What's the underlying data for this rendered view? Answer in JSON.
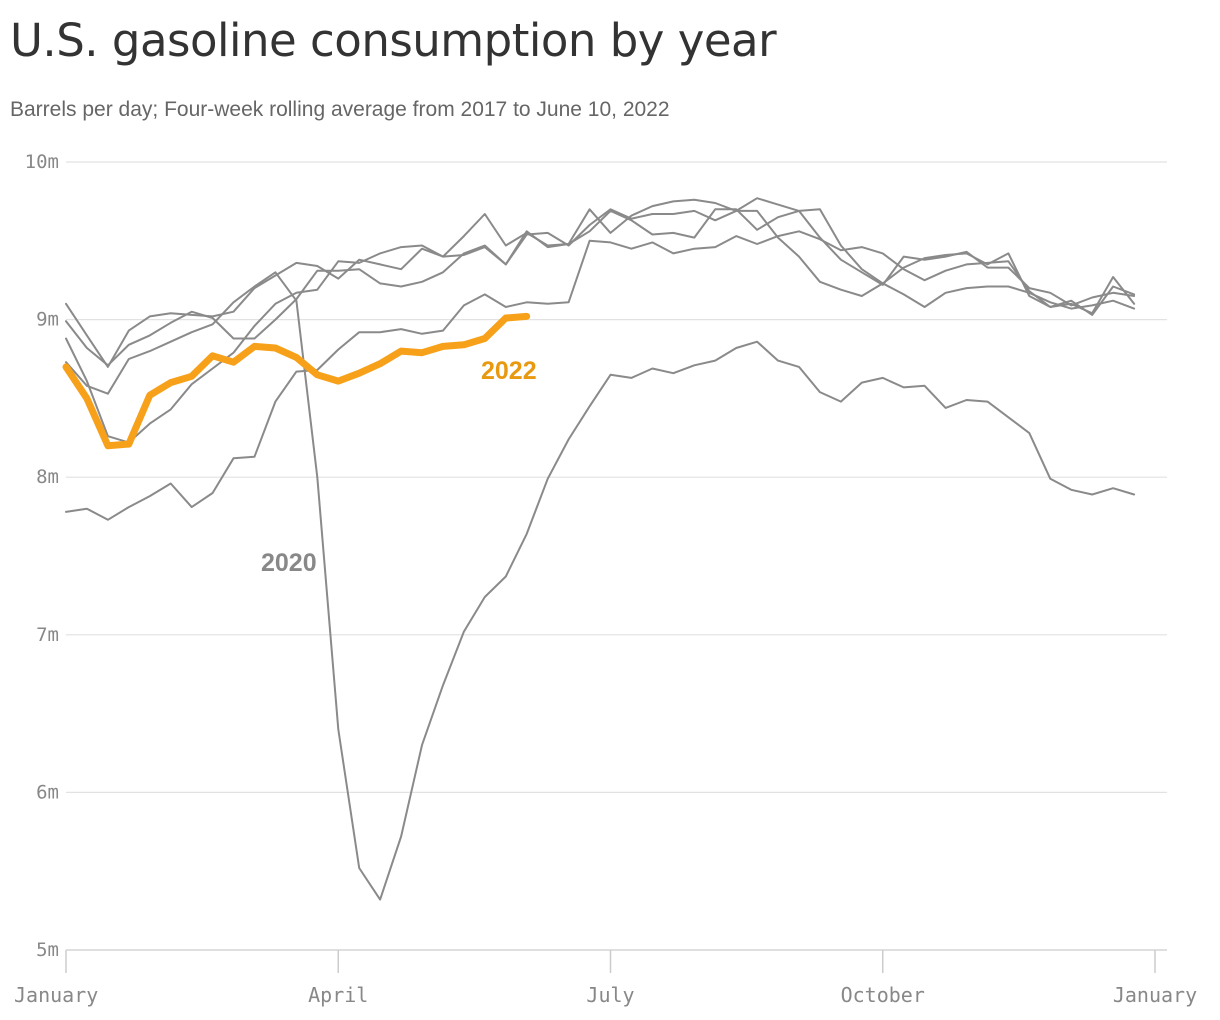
{
  "title": "U.S. gasoline consumption by year",
  "subtitle": "Barrels per day; Four-week rolling average from 2017 to June 10, 2022",
  "colors": {
    "highlight": "#F7A11A",
    "other": "#8a8a8a",
    "label2020": "#888888",
    "grid": "#e2e2e2",
    "axis": "#cccccc"
  },
  "chart_data": {
    "type": "line",
    "title": "U.S. gasoline consumption by year",
    "subtitle": "Barrels per day; Four-week rolling average from 2017 to June 10, 2022",
    "x_unit": "week of year",
    "y_unit": "barrels per day (millions)",
    "ylim": [
      5,
      10
    ],
    "yticks": [
      {
        "value": 10,
        "label": "10m"
      },
      {
        "value": 9,
        "label": "9m"
      },
      {
        "value": 8,
        "label": "8m"
      },
      {
        "value": 7,
        "label": "7m"
      },
      {
        "value": 6,
        "label": "6m"
      },
      {
        "value": 5,
        "label": "5m"
      }
    ],
    "xticks": [
      {
        "value": 0,
        "label": "January"
      },
      {
        "value": 13,
        "label": "April"
      },
      {
        "value": 26,
        "label": "July"
      },
      {
        "value": 39,
        "label": "October"
      },
      {
        "value": 52,
        "label": "January"
      }
    ],
    "grid": true,
    "series": [
      {
        "name": "2022",
        "highlight": true,
        "label": "2022",
        "start_week": 1,
        "values": [
          8.7,
          8.5,
          8.2,
          8.21,
          8.52,
          8.6,
          8.64,
          8.77,
          8.73,
          8.83,
          8.82,
          8.76,
          8.65,
          8.61,
          8.66,
          8.72,
          8.8,
          8.79,
          8.83,
          8.84,
          8.88,
          9.01,
          9.02
        ]
      },
      {
        "name": "2020",
        "highlight": false,
        "label": "2020",
        "start_week": 1,
        "values": [
          8.73,
          8.58,
          8.53,
          8.75,
          8.8,
          8.86,
          8.92,
          8.97,
          9.11,
          9.21,
          9.3,
          9.12,
          8.0,
          6.4,
          5.52,
          5.32,
          5.72,
          6.3,
          6.68,
          7.02,
          7.24,
          7.37,
          7.64,
          7.99,
          8.24,
          8.45,
          8.65,
          8.63,
          8.69,
          8.66,
          8.71,
          8.74,
          8.82,
          8.86,
          8.74,
          8.7,
          8.54,
          8.48,
          8.6,
          8.63,
          8.57,
          8.58,
          8.44,
          8.49,
          8.48,
          8.38,
          8.28,
          7.99,
          7.92,
          7.89,
          7.93,
          7.89
        ]
      },
      {
        "name": "",
        "highlight": false,
        "start_week": 1,
        "values": [
          9.1,
          8.9,
          8.7,
          8.93,
          9.02,
          9.04,
          9.03,
          9.02,
          9.05,
          9.2,
          9.28,
          9.36,
          9.34,
          9.26,
          9.38,
          9.35,
          9.32,
          9.45,
          9.4,
          9.41,
          9.46,
          9.35,
          9.56,
          9.46,
          9.48,
          9.7,
          9.55,
          9.66,
          9.72,
          9.75,
          9.76,
          9.74,
          9.69,
          9.77,
          9.73,
          9.69,
          9.52,
          9.38,
          9.3,
          9.22,
          9.4,
          9.38,
          9.4,
          9.43,
          9.33,
          9.33,
          9.2,
          9.17,
          9.09,
          9.14,
          9.17,
          9.15
        ]
      },
      {
        "name": "",
        "highlight": false,
        "start_week": 1,
        "values": [
          8.99,
          8.82,
          8.71,
          8.84,
          8.9,
          8.98,
          9.05,
          9.01,
          8.88,
          8.88,
          9.0,
          9.13,
          9.31,
          9.31,
          9.32,
          9.23,
          9.21,
          9.24,
          9.3,
          9.42,
          9.47,
          9.35,
          9.54,
          9.55,
          9.47,
          9.6,
          9.7,
          9.64,
          9.67,
          9.67,
          9.69,
          9.63,
          9.69,
          9.69,
          9.52,
          9.4,
          9.24,
          9.19,
          9.15,
          9.23,
          9.33,
          9.39,
          9.41,
          9.42,
          9.35,
          9.42,
          9.15,
          9.08,
          9.1,
          9.04,
          9.27,
          9.1
        ]
      },
      {
        "name": "",
        "highlight": false,
        "start_week": 1,
        "values": [
          8.88,
          8.61,
          8.26,
          8.22,
          8.34,
          8.43,
          8.59,
          8.69,
          8.79,
          8.96,
          9.1,
          9.17,
          9.19,
          9.37,
          9.36,
          9.42,
          9.46,
          9.47,
          9.4,
          9.53,
          9.67,
          9.47,
          9.55,
          9.47,
          9.48,
          9.56,
          9.69,
          9.63,
          9.54,
          9.55,
          9.52,
          9.7,
          9.7,
          9.57,
          9.65,
          9.69,
          9.7,
          9.47,
          9.32,
          9.23,
          9.16,
          9.08,
          9.17,
          9.2,
          9.21,
          9.21,
          9.17,
          9.11,
          9.07,
          9.09,
          9.12,
          9.07
        ]
      },
      {
        "name": "",
        "highlight": false,
        "start_week": 1,
        "values": [
          7.78,
          7.8,
          7.73,
          7.81,
          7.88,
          7.96,
          7.81,
          7.9,
          8.12,
          8.13,
          8.48,
          8.67,
          8.68,
          8.81,
          8.92,
          8.92,
          8.94,
          8.91,
          8.93,
          9.09,
          9.16,
          9.08,
          9.11,
          9.1,
          9.11,
          9.5,
          9.49,
          9.45,
          9.49,
          9.42,
          9.45,
          9.46,
          9.53,
          9.48,
          9.53,
          9.56,
          9.51,
          9.44,
          9.46,
          9.42,
          9.32,
          9.25,
          9.31,
          9.35,
          9.36,
          9.37,
          9.18,
          9.08,
          9.12,
          9.03,
          9.21,
          9.16
        ]
      }
    ]
  }
}
